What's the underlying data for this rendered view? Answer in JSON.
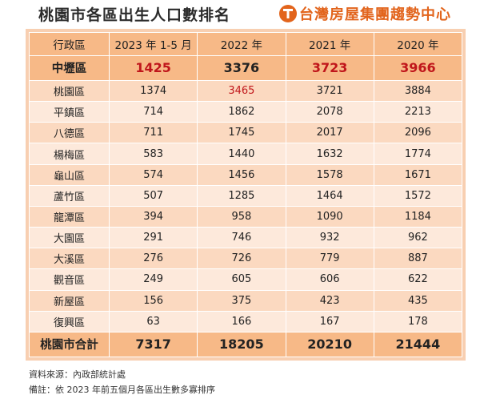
{
  "title": "桃園市各區出生人口數排名",
  "brand": {
    "name": "台灣房屋集團趨勢中心",
    "logo_icon": "t-circle-icon",
    "color": "#e2641c"
  },
  "table": {
    "headers": [
      "行政區",
      "2023 年 1-5 月",
      "2022 年",
      "2021 年",
      "2020 年"
    ],
    "highlight_row": {
      "district": "中壢區",
      "values": [
        "1425",
        "3376",
        "3723",
        "3966"
      ],
      "red": [
        true,
        false,
        true,
        true
      ]
    },
    "rows": [
      {
        "district": "桃園區",
        "values": [
          "1374",
          "3465",
          "3721",
          "3884"
        ],
        "red": [
          false,
          true,
          false,
          false
        ]
      },
      {
        "district": "平鎮區",
        "values": [
          "714",
          "1862",
          "2078",
          "2213"
        ],
        "red": [
          false,
          false,
          false,
          false
        ]
      },
      {
        "district": "八德區",
        "values": [
          "711",
          "1745",
          "2017",
          "2096"
        ],
        "red": [
          false,
          false,
          false,
          false
        ]
      },
      {
        "district": "楊梅區",
        "values": [
          "583",
          "1440",
          "1632",
          "1774"
        ],
        "red": [
          false,
          false,
          false,
          false
        ]
      },
      {
        "district": "龜山區",
        "values": [
          "574",
          "1456",
          "1578",
          "1671"
        ],
        "red": [
          false,
          false,
          false,
          false
        ]
      },
      {
        "district": "蘆竹區",
        "values": [
          "507",
          "1285",
          "1464",
          "1572"
        ],
        "red": [
          false,
          false,
          false,
          false
        ]
      },
      {
        "district": "龍潭區",
        "values": [
          "394",
          "958",
          "1090",
          "1184"
        ],
        "red": [
          false,
          false,
          false,
          false
        ]
      },
      {
        "district": "大園區",
        "values": [
          "291",
          "746",
          "932",
          "962"
        ],
        "red": [
          false,
          false,
          false,
          false
        ]
      },
      {
        "district": "大溪區",
        "values": [
          "276",
          "726",
          "779",
          "887"
        ],
        "red": [
          false,
          false,
          false,
          false
        ]
      },
      {
        "district": "觀音區",
        "values": [
          "249",
          "605",
          "606",
          "622"
        ],
        "red": [
          false,
          false,
          false,
          false
        ]
      },
      {
        "district": "新屋區",
        "values": [
          "156",
          "375",
          "423",
          "435"
        ],
        "red": [
          false,
          false,
          false,
          false
        ]
      },
      {
        "district": "復興區",
        "values": [
          "63",
          "166",
          "167",
          "178"
        ],
        "red": [
          false,
          false,
          false,
          false
        ]
      }
    ],
    "total_row": {
      "district": "桃園市合計",
      "values": [
        "7317",
        "18205",
        "20210",
        "21444"
      ]
    }
  },
  "notes": {
    "source": "資料來源：內政部統計處",
    "remark": "備註：依 2023 年前五個月各區出生數多寡排序"
  },
  "colors": {
    "header_bg": "#f7b987",
    "row_light": "#fde9db",
    "row_dark": "#fbd9c0",
    "highlight_text": "#c0161b"
  }
}
